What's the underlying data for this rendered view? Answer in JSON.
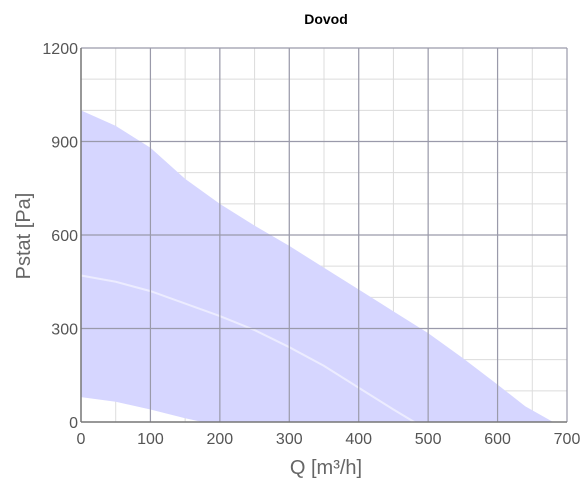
{
  "chart_data": {
    "type": "area",
    "title": "Dovod",
    "xlabel": "Q [m³/h]",
    "ylabel": "Pstat [Pa]",
    "xlim": [
      0,
      700
    ],
    "ylim": [
      0,
      1200
    ],
    "x_ticks": [
      0,
      100,
      200,
      300,
      400,
      500,
      600,
      700
    ],
    "y_ticks": [
      0,
      300,
      600,
      900,
      1200
    ],
    "grid": true,
    "minor_grid": true,
    "colors": {
      "fill": "#d6d6ff",
      "major_grid": "#9a9aaa",
      "minor_grid": "#dcdcdc",
      "inner_curve": "#ececff"
    },
    "series": [
      {
        "role": "upper-boundary",
        "x": [
          0,
          50,
          100,
          150,
          200,
          250,
          300,
          350,
          400,
          450,
          500,
          550,
          600,
          640,
          680
        ],
        "y": [
          1000,
          950,
          880,
          780,
          700,
          630,
          565,
          495,
          425,
          355,
          285,
          205,
          120,
          50,
          0
        ]
      },
      {
        "role": "lower-boundary",
        "x": [
          0,
          50,
          100,
          150,
          175
        ],
        "y": [
          80,
          65,
          40,
          12,
          0
        ]
      },
      {
        "role": "inner-curve",
        "x": [
          0,
          50,
          100,
          150,
          200,
          250,
          300,
          350,
          400,
          450,
          480
        ],
        "y": [
          470,
          450,
          420,
          380,
          340,
          295,
          240,
          180,
          110,
          40,
          0
        ]
      }
    ]
  }
}
